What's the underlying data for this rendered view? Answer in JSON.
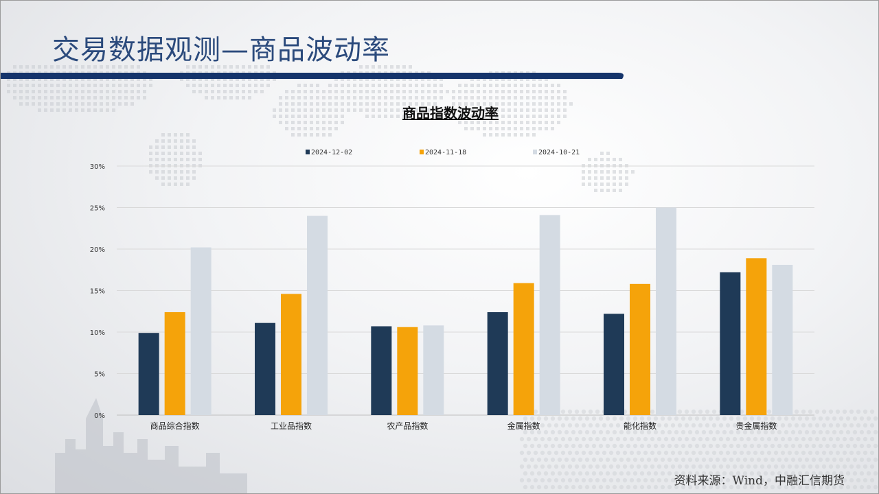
{
  "page": {
    "title": "交易数据观测—商品波动率"
  },
  "source": "资料来源：Wind，中融汇信期货",
  "chart_data": {
    "type": "bar",
    "title": "商品指数波动率",
    "categories": [
      "商品综合指数",
      "工业品指数",
      "农产品指数",
      "金属指数",
      "能化指数",
      "贵金属指数"
    ],
    "series": [
      {
        "name": "2024-12-02",
        "color": "#1f3a57",
        "values": [
          9.9,
          11.1,
          10.7,
          12.4,
          12.2,
          17.2
        ]
      },
      {
        "name": "2024-11-18",
        "color": "#f5a30a",
        "values": [
          12.4,
          14.6,
          10.6,
          15.9,
          15.8,
          18.9
        ]
      },
      {
        "name": "2024-10-21",
        "color": "#d4dbe3",
        "values": [
          20.2,
          24.0,
          10.8,
          24.1,
          25.0,
          18.1
        ]
      }
    ],
    "ylim": [
      0,
      30
    ],
    "yticks": [
      "0%",
      "5%",
      "10%",
      "15%",
      "20%",
      "25%",
      "30%"
    ],
    "ytick_values": [
      0,
      5,
      10,
      15,
      20,
      25,
      30
    ],
    "grid": true,
    "legend_position": "top-center"
  }
}
